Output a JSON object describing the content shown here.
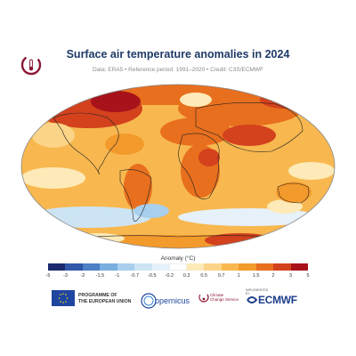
{
  "header": {
    "title": "Surface air temperature anomalies in 2024",
    "subtitle": "Data: ERA5 • Reference period: 1991–2020 • Credit: C3S/ECMWF"
  },
  "legend": {
    "title": "Anomaly (°C)",
    "ticks": [
      "-5",
      "-3",
      "-2",
      "-1.5",
      "-1",
      "-0.7",
      "-0.5",
      "-0.2",
      "0.2",
      "0.5",
      "0.7",
      "1",
      "1.5",
      "2",
      "3",
      "5"
    ],
    "colors": [
      "#1a2a6c",
      "#2f57a8",
      "#4d80c4",
      "#7aaee0",
      "#a8cfee",
      "#cde4f5",
      "#e6f1fa",
      "#ffffff",
      "#fdeab8",
      "#fbd488",
      "#f8b84f",
      "#f39a2c",
      "#e86f1e",
      "#d3411d",
      "#a8131b"
    ]
  },
  "footer": {
    "eu_line1": "PROGRAMME OF",
    "eu_line2": "THE EUROPEAN UNION",
    "copernicus": "opernicus",
    "c3s_line1": "Climate",
    "c3s_line2": "Change Service",
    "ecmwf_small": "IMPLEMENTED BY",
    "ecmwf": "ECMWF"
  }
}
